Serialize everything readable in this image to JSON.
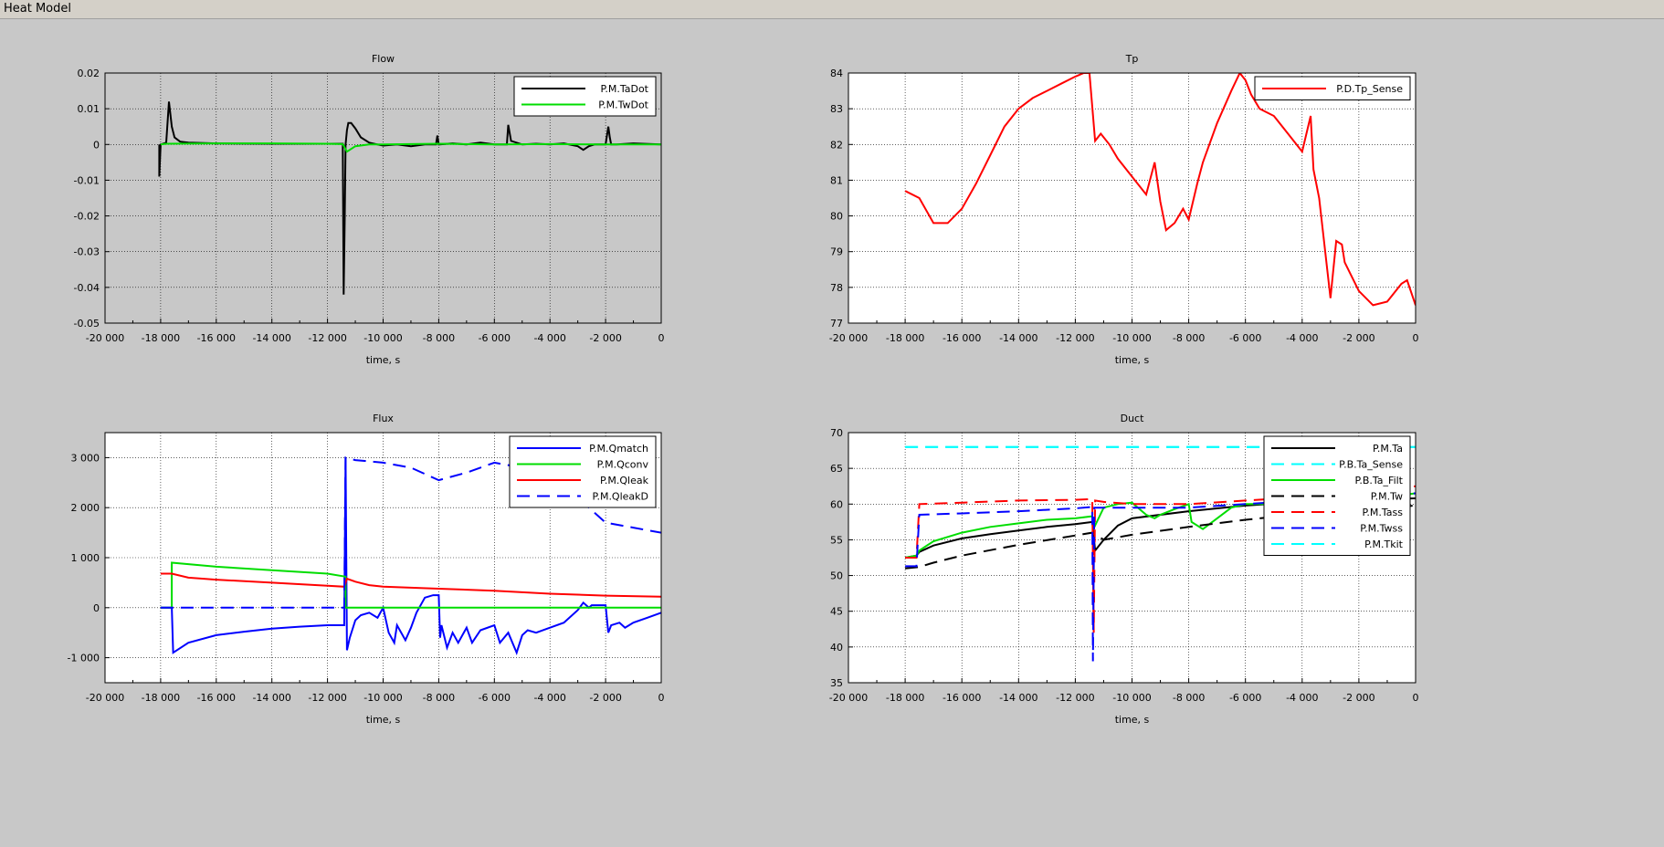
{
  "window": {
    "title": "Heat Model"
  },
  "chart_data": [
    {
      "type": "line",
      "title": "Flow",
      "xlabel": "time, s",
      "ylabel": "",
      "xlim": [
        -20000,
        0
      ],
      "ylim": [
        -0.05,
        0.02
      ],
      "xticks": [
        -20000,
        -18000,
        -16000,
        -14000,
        -12000,
        -10000,
        -8000,
        -6000,
        -4000,
        -2000,
        0
      ],
      "xtick_labels": [
        "-20 000",
        "-18 000",
        "-16 000",
        "-14 000",
        "-12 000",
        "-10 000",
        "-8 000",
        "-6 000",
        "-4 000",
        "-2 000",
        "0"
      ],
      "yticks": [
        -0.05,
        -0.04,
        -0.03,
        -0.02,
        -0.01,
        0,
        0.01,
        0.02
      ],
      "ytick_labels": [
        "-0.05",
        "-0.04",
        "-0.03",
        "-0.02",
        "-0.01",
        "0",
        "0.01",
        "0.02"
      ],
      "grid": true,
      "legend": "top-right",
      "background": "#c8c8c8",
      "series": [
        {
          "name": "P.M.TaDot",
          "color": "#000000",
          "dash": "solid",
          "x": [
            -18050,
            -18050,
            -18000,
            -17800,
            -17700,
            -17600,
            -17500,
            -17300,
            -17000,
            -16000,
            -14000,
            -12000,
            -11450,
            -11420,
            -11380,
            -11350,
            -11300,
            -11250,
            -11150,
            -11000,
            -10800,
            -10500,
            -10200,
            -10000,
            -9500,
            -9000,
            -8500,
            -8100,
            -8050,
            -8000,
            -7500,
            -7000,
            -6500,
            -6000,
            -5550,
            -5500,
            -5400,
            -5000,
            -4500,
            -4000,
            -3500,
            -3000,
            -2800,
            -2600,
            -2400,
            -2000,
            -1900,
            -1850,
            -1800,
            -1600,
            -1000,
            0
          ],
          "y": [
            0,
            -0.009,
            0,
            0.0005,
            0.012,
            0.005,
            0.002,
            0.0008,
            0.0005,
            0.0003,
            0.0002,
            0.0002,
            0.0002,
            -0.042,
            -0.02,
            0,
            0.004,
            0.006,
            0.006,
            0.0045,
            0.002,
            0.0005,
            0,
            -0.0003,
            0,
            -0.0005,
            0,
            0,
            0.0025,
            0,
            0.0003,
            0,
            0.0005,
            0,
            0,
            0.0055,
            0.001,
            0,
            0.0002,
            0,
            0.0003,
            -0.0005,
            -0.0015,
            -0.0005,
            0,
            0,
            0.005,
            0.002,
            0,
            0,
            0.0003,
            0
          ]
        },
        {
          "name": "P.M.TwDot",
          "color": "#00dd00",
          "dash": "solid",
          "x": [
            -18000,
            -17800,
            -16000,
            -14000,
            -12000,
            -11450,
            -11300,
            -11000,
            -10500,
            -10000,
            -8000,
            -6000,
            -4000,
            -2000,
            0
          ],
          "y": [
            0,
            0.0002,
            0.0003,
            0.0003,
            0.0002,
            0.0001,
            -0.002,
            -0.0005,
            0,
            0,
            0.0002,
            0,
            0.0001,
            0,
            0
          ]
        }
      ]
    },
    {
      "type": "line",
      "title": "Tp",
      "xlabel": "time, s",
      "ylabel": "",
      "xlim": [
        -20000,
        0
      ],
      "ylim": [
        77,
        84
      ],
      "xticks": [
        -20000,
        -18000,
        -16000,
        -14000,
        -12000,
        -10000,
        -8000,
        -6000,
        -4000,
        -2000,
        0
      ],
      "xtick_labels": [
        "-20 000",
        "-18 000",
        "-16 000",
        "-14 000",
        "-12 000",
        "-10 000",
        "-8 000",
        "-6 000",
        "-4 000",
        "-2 000",
        "0"
      ],
      "yticks": [
        77,
        78,
        79,
        80,
        81,
        82,
        83,
        84
      ],
      "ytick_labels": [
        "77",
        "78",
        "79",
        "80",
        "81",
        "82",
        "83",
        "84"
      ],
      "grid": true,
      "legend": "top-right",
      "background": "#ffffff",
      "series": [
        {
          "name": "P.D.Tp_Sense",
          "color": "#ff0000",
          "dash": "solid",
          "x": [
            -18000,
            -17500,
            -17000,
            -16500,
            -16000,
            -15500,
            -15000,
            -14500,
            -14000,
            -13500,
            -13000,
            -12500,
            -12000,
            -11700,
            -11500,
            -11300,
            -11100,
            -10800,
            -10500,
            -10000,
            -9500,
            -9200,
            -9000,
            -8800,
            -8500,
            -8200,
            -8000,
            -7700,
            -7500,
            -7000,
            -6500,
            -6200,
            -6000,
            -5800,
            -5500,
            -5000,
            -4500,
            -4000,
            -3700,
            -3600,
            -3400,
            -3000,
            -2800,
            -2600,
            -2500,
            -2000,
            -1500,
            -1000,
            -500,
            -300,
            0
          ],
          "y": [
            80.7,
            80.5,
            79.8,
            79.8,
            80.2,
            80.9,
            81.7,
            82.5,
            83.0,
            83.3,
            83.5,
            83.7,
            83.9,
            84.0,
            84.0,
            82.1,
            82.3,
            82.0,
            81.6,
            81.1,
            80.6,
            81.5,
            80.4,
            79.6,
            79.8,
            80.2,
            79.9,
            80.9,
            81.5,
            82.6,
            83.5,
            84.0,
            83.8,
            83.4,
            83.0,
            82.8,
            82.3,
            81.8,
            82.8,
            81.3,
            80.5,
            77.7,
            79.3,
            79.2,
            78.7,
            77.9,
            77.5,
            77.6,
            78.1,
            78.2,
            77.5
          ]
        }
      ]
    },
    {
      "type": "line",
      "title": "Flux",
      "xlabel": "time, s",
      "ylabel": "",
      "xlim": [
        -20000,
        0
      ],
      "ylim": [
        -1500,
        3500
      ],
      "xticks": [
        -20000,
        -18000,
        -16000,
        -14000,
        -12000,
        -10000,
        -8000,
        -6000,
        -4000,
        -2000,
        0
      ],
      "xtick_labels": [
        "-20 000",
        "-18 000",
        "-16 000",
        "-14 000",
        "-12 000",
        "-10 000",
        "-8 000",
        "-6 000",
        "-4 000",
        "-2 000",
        "0"
      ],
      "yticks": [
        -1000,
        0,
        1000,
        2000,
        3000
      ],
      "ytick_labels": [
        "-1 000",
        "0",
        "1 000",
        "2 000",
        "3 000"
      ],
      "grid": true,
      "legend": "top-right",
      "background": "#ffffff",
      "series": [
        {
          "name": "P.M.Qmatch",
          "color": "#0000ff",
          "dash": "solid",
          "x": [
            -18000,
            -17600,
            -17550,
            -17000,
            -16000,
            -15000,
            -14000,
            -13000,
            -12000,
            -11400,
            -11350,
            -11300,
            -11200,
            -11000,
            -10800,
            -10500,
            -10200,
            -10000,
            -9800,
            -9600,
            -9500,
            -9200,
            -9000,
            -8800,
            -8500,
            -8200,
            -8000,
            -7950,
            -7900,
            -7700,
            -7500,
            -7300,
            -7000,
            -6800,
            -6500,
            -6000,
            -5800,
            -5500,
            -5200,
            -5000,
            -4800,
            -4500,
            -4000,
            -3500,
            -3000,
            -2800,
            -2600,
            -2500,
            -2000,
            -1900,
            -1800,
            -1500,
            -1300,
            -1000,
            -500,
            0
          ],
          "y": [
            0,
            0,
            -900,
            -700,
            -550,
            -480,
            -420,
            -380,
            -350,
            -350,
            3000,
            -850,
            -600,
            -250,
            -150,
            -100,
            -200,
            0,
            -500,
            -700,
            -350,
            -650,
            -400,
            -100,
            200,
            250,
            250,
            -600,
            -350,
            -800,
            -500,
            -700,
            -400,
            -700,
            -450,
            -350,
            -700,
            -500,
            -900,
            -550,
            -450,
            -500,
            -400,
            -300,
            -50,
            100,
            0,
            50,
            50,
            -500,
            -350,
            -300,
            -400,
            -300,
            -200,
            -100
          ]
        },
        {
          "name": "P.M.Qconv",
          "color": "#00dd00",
          "dash": "solid",
          "x": [
            -18000,
            -17600,
            -17600,
            -16000,
            -14000,
            -12000,
            -11350,
            -11350,
            0
          ],
          "y": [
            0,
            0,
            900,
            820,
            750,
            680,
            620,
            0,
            0
          ]
        },
        {
          "name": "P.M.Qleak",
          "color": "#ff0000",
          "dash": "solid",
          "x": [
            -18000,
            -17600,
            -17000,
            -16000,
            -14000,
            -12000,
            -11400,
            -11300,
            -11000,
            -10500,
            -10000,
            -8000,
            -6000,
            -4000,
            -2000,
            0
          ],
          "y": [
            680,
            680,
            600,
            560,
            500,
            440,
            420,
            580,
            520,
            450,
            420,
            380,
            340,
            280,
            240,
            220
          ]
        },
        {
          "name": "P.M.QleakD",
          "color": "#0000ff",
          "dash": "dashed",
          "x": [
            -18000,
            -11400,
            -11350,
            -11000,
            -10000,
            -9000,
            -8000,
            -7000,
            -6000,
            -5000,
            -4000,
            -3000,
            -2000,
            -1500,
            -1000,
            -500,
            0
          ],
          "y": [
            0,
            0,
            3000,
            2950,
            2900,
            2800,
            2550,
            2700,
            2900,
            2800,
            2500,
            2200,
            1700,
            1650,
            1600,
            1550,
            1500
          ]
        }
      ]
    },
    {
      "type": "line",
      "title": "Duct",
      "xlabel": "time, s",
      "ylabel": "",
      "xlim": [
        -20000,
        0
      ],
      "ylim": [
        35,
        70
      ],
      "xticks": [
        -20000,
        -18000,
        -16000,
        -14000,
        -12000,
        -10000,
        -8000,
        -6000,
        -4000,
        -2000,
        0
      ],
      "xtick_labels": [
        "-20 000",
        "-18 000",
        "-16 000",
        "-14 000",
        "-12 000",
        "-10 000",
        "-8 000",
        "-6 000",
        "-4 000",
        "-2 000",
        "0"
      ],
      "yticks": [
        35,
        40,
        45,
        50,
        55,
        60,
        65,
        70
      ],
      "ytick_labels": [
        "35",
        "40",
        "45",
        "50",
        "55",
        "60",
        "65",
        "70"
      ],
      "grid": true,
      "legend": "top-right",
      "background": "#ffffff",
      "series": [
        {
          "name": "P.M.Ta",
          "color": "#000000",
          "dash": "solid",
          "x": [
            -18000,
            -17600,
            -17500,
            -17000,
            -16000,
            -15000,
            -14000,
            -13000,
            -12000,
            -11400,
            -11300,
            -11000,
            -10500,
            -10000,
            -8000,
            -6000,
            -4000,
            -2000,
            0
          ],
          "y": [
            52.5,
            52.8,
            53.3,
            54.2,
            55.2,
            55.8,
            56.3,
            56.8,
            57.2,
            57.5,
            53.5,
            55.0,
            57.0,
            58.0,
            59.0,
            59.8,
            60.3,
            60.6,
            60.8
          ]
        },
        {
          "name": "P.B.Ta_Sense",
          "color": "#00ffff",
          "dash": "dashed",
          "x": [
            -18000,
            0
          ],
          "y": [
            68,
            68
          ]
        },
        {
          "name": "P.B.Ta_Filt",
          "color": "#00dd00",
          "dash": "solid",
          "x": [
            -18000,
            -17600,
            -17500,
            -17000,
            -16000,
            -15000,
            -14000,
            -13000,
            -12000,
            -11400,
            -11300,
            -11000,
            -10500,
            -10000,
            -9500,
            -9200,
            -9000,
            -8500,
            -8000,
            -7900,
            -7500,
            -7000,
            -6500,
            -6000,
            -5000,
            -4000,
            -2000,
            0
          ],
          "y": [
            52.5,
            52.8,
            53.5,
            54.8,
            56.0,
            56.8,
            57.3,
            57.8,
            58.0,
            58.3,
            57.0,
            59.5,
            60.0,
            60.2,
            58.5,
            58.0,
            58.5,
            59.3,
            60.0,
            57.5,
            56.5,
            58.0,
            59.5,
            60.0,
            60.0,
            60.0,
            60.5,
            61.5
          ]
        },
        {
          "name": "P.M.Tw",
          "color": "#000000",
          "dash": "dashed",
          "x": [
            -18000,
            -17500,
            -17000,
            -16000,
            -14000,
            -12000,
            -11400,
            -11000,
            -10000,
            -8000,
            -6000,
            -4000,
            -2000,
            0
          ],
          "y": [
            51.0,
            51.2,
            51.8,
            52.8,
            54.3,
            55.6,
            56.0,
            55.0,
            55.7,
            56.8,
            57.8,
            58.6,
            59.2,
            59.8
          ]
        },
        {
          "name": "P.M.Tass",
          "color": "#ff0000",
          "dash": "dashed",
          "x": [
            -18000,
            -17600,
            -17500,
            -16000,
            -14000,
            -12000,
            -11400,
            -11350,
            -11300,
            -11000,
            -10000,
            -8000,
            -6000,
            -4000,
            -2000,
            0
          ],
          "y": [
            52.5,
            52.5,
            60.0,
            60.2,
            60.5,
            60.6,
            60.7,
            42.0,
            60.5,
            60.3,
            60.0,
            60.0,
            60.5,
            61.0,
            61.5,
            62.5
          ]
        },
        {
          "name": "P.M.Twss",
          "color": "#0000ff",
          "dash": "dashed",
          "x": [
            -18000,
            -17600,
            -17500,
            -16000,
            -14000,
            -12000,
            -11400,
            -11380,
            -11330,
            -11300,
            -10000,
            -8000,
            -6000,
            -4000,
            -2000,
            0
          ],
          "y": [
            51.3,
            51.3,
            58.5,
            58.7,
            59.0,
            59.4,
            59.6,
            38.0,
            59.5,
            59.5,
            59.5,
            59.5,
            60.0,
            60.5,
            61.0,
            61.5
          ]
        },
        {
          "name": "P.M.Tkit",
          "color": "#00ffff",
          "dash": "dashed",
          "x": [
            -18000,
            0
          ],
          "y": [
            68,
            68
          ]
        }
      ]
    }
  ]
}
